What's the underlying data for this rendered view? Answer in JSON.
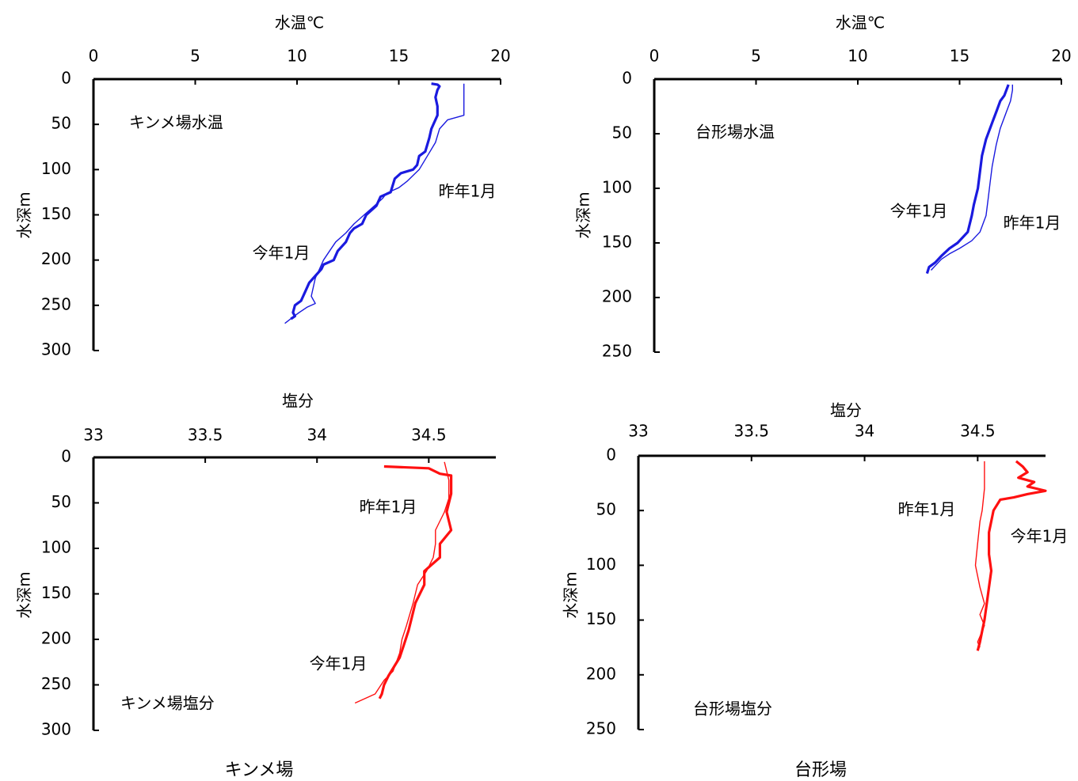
{
  "captions": [
    "キンメ場",
    "台形場"
  ],
  "chart_data": [
    {
      "type": "line",
      "panel": "top-left",
      "xlabel": "水温℃",
      "ylabel": "水深m",
      "annotation": "キンメ場水温",
      "xlim": [
        0,
        20
      ],
      "ylim": [
        0,
        300
      ],
      "xticks": [
        0,
        5,
        10,
        15,
        20
      ],
      "yticks": [
        0,
        50,
        100,
        150,
        200,
        250,
        300
      ],
      "y_inverted": true,
      "color": "#1a1adf",
      "series": [
        {
          "name": "今年1月",
          "bold": true,
          "x": [
            16.6,
            16.9,
            17.0,
            16.9,
            16.8,
            16.9,
            16.9,
            16.6,
            16.5,
            16.3,
            16.0,
            15.9,
            15.7,
            15.1,
            14.8,
            14.6,
            14.1,
            13.9,
            13.4,
            13.2,
            12.8,
            12.6,
            12.4,
            12.0,
            11.8,
            11.3,
            11.2,
            10.8,
            10.6,
            10.4,
            10.2,
            9.9,
            9.8,
            9.9,
            9.7
          ],
          "y": [
            5,
            6,
            8,
            12,
            20,
            30,
            40,
            55,
            65,
            80,
            85,
            95,
            100,
            104,
            110,
            125,
            130,
            140,
            150,
            160,
            165,
            170,
            180,
            190,
            200,
            205,
            210,
            220,
            225,
            235,
            245,
            250,
            258,
            262,
            265
          ]
        },
        {
          "name": "昨年1月",
          "bold": false,
          "x": [
            18.2,
            18.2,
            18.2,
            18.2,
            17.4,
            17.0,
            16.8,
            16.4,
            16.0,
            15.4,
            15.0,
            14.4,
            14.2,
            13.8,
            13.3,
            12.8,
            12.4,
            11.9,
            11.6,
            11.3,
            11.1,
            10.9,
            10.7,
            10.9,
            10.5,
            10.1,
            9.8,
            9.4
          ],
          "y": [
            5,
            10,
            30,
            40,
            45,
            55,
            70,
            85,
            100,
            113,
            120,
            126,
            132,
            140,
            150,
            160,
            170,
            180,
            190,
            200,
            210,
            220,
            240,
            248,
            252,
            258,
            263,
            270
          ]
        }
      ]
    },
    {
      "type": "line",
      "panel": "top-right",
      "xlabel": "水温℃",
      "ylabel": "水深m",
      "annotation": "台形場水温",
      "xlim": [
        0,
        20
      ],
      "ylim": [
        0,
        250
      ],
      "xticks": [
        0,
        5,
        10,
        15,
        20
      ],
      "yticks": [
        0,
        50,
        100,
        150,
        200,
        250
      ],
      "y_inverted": true,
      "color": "#1a1adf",
      "series": [
        {
          "name": "今年1月",
          "bold": true,
          "x": [
            17.4,
            17.2,
            17.0,
            16.8,
            16.6,
            16.3,
            16.1,
            16.0,
            15.9,
            15.7,
            15.6,
            15.4,
            14.9,
            14.5,
            14.1,
            13.8,
            13.5,
            13.4
          ],
          "y": [
            5,
            15,
            20,
            30,
            40,
            55,
            70,
            85,
            100,
            115,
            125,
            140,
            150,
            155,
            162,
            168,
            172,
            178
          ]
        },
        {
          "name": "昨年1月",
          "bold": false,
          "x": [
            17.6,
            17.6,
            17.5,
            17.3,
            17.0,
            16.8,
            16.6,
            16.5,
            16.4,
            16.3,
            16.0,
            15.6,
            15.0,
            14.5,
            14.1,
            13.6
          ],
          "y": [
            5,
            10,
            20,
            30,
            45,
            60,
            80,
            95,
            110,
            125,
            140,
            148,
            155,
            160,
            165,
            175
          ]
        }
      ]
    },
    {
      "type": "line",
      "panel": "bottom-left",
      "xlabel": "塩分",
      "ylabel": "水深m",
      "annotation": "キンメ場塩分",
      "xlim": [
        33,
        34.8
      ],
      "ylim": [
        0,
        300
      ],
      "xticks": [
        33,
        33.5,
        34,
        34.5
      ],
      "yticks": [
        0,
        50,
        100,
        150,
        200,
        250,
        300
      ],
      "y_inverted": true,
      "color": "#ff1010",
      "series": [
        {
          "name": "今年1月",
          "bold": true,
          "x": [
            34.3,
            34.5,
            34.55,
            34.6,
            34.6,
            34.58,
            34.6,
            34.55,
            34.55,
            34.48,
            34.48,
            34.44,
            34.43,
            34.41,
            34.39,
            34.37,
            34.32,
            34.3,
            34.29,
            34.28
          ],
          "y": [
            10,
            12,
            18,
            20,
            40,
            60,
            80,
            95,
            110,
            125,
            140,
            160,
            170,
            190,
            205,
            220,
            240,
            250,
            260,
            265
          ]
        },
        {
          "name": "昨年1月",
          "bold": false,
          "x": [
            34.57,
            34.59,
            34.59,
            34.57,
            34.53,
            34.53,
            34.52,
            34.49,
            34.45,
            34.43,
            34.4,
            34.38,
            34.37,
            34.34,
            34.3,
            34.26,
            34.17
          ],
          "y": [
            5,
            25,
            45,
            60,
            80,
            95,
            110,
            125,
            140,
            160,
            185,
            200,
            215,
            235,
            245,
            260,
            270
          ]
        }
      ]
    },
    {
      "type": "line",
      "panel": "bottom-right",
      "xlabel": "塩分",
      "ylabel": "水深m",
      "annotation": "台形場塩分",
      "xlim": [
        33,
        34.8
      ],
      "ylim": [
        0,
        250
      ],
      "xticks": [
        33,
        33.5,
        34,
        34.5
      ],
      "yticks": [
        0,
        50,
        100,
        150,
        200,
        250
      ],
      "y_inverted": true,
      "color": "#ff1010",
      "series": [
        {
          "name": "今年1月",
          "bold": true,
          "x": [
            34.67,
            34.7,
            34.72,
            34.68,
            34.75,
            34.72,
            34.76,
            34.8,
            34.72,
            34.66,
            34.6,
            34.57,
            34.55,
            34.55,
            34.56,
            34.55,
            34.54,
            34.53,
            34.52,
            34.51,
            34.5
          ],
          "y": [
            5,
            10,
            15,
            20,
            24,
            28,
            30,
            32,
            35,
            38,
            40,
            50,
            70,
            90,
            105,
            120,
            135,
            150,
            160,
            170,
            178
          ]
        },
        {
          "name": "昨年1月",
          "bold": false,
          "x": [
            34.53,
            34.53,
            34.52,
            34.51,
            34.5,
            34.49,
            34.51,
            34.53,
            34.51,
            34.53,
            34.52,
            34.51,
            34.5,
            34.51
          ],
          "y": [
            5,
            30,
            50,
            60,
            80,
            100,
            120,
            135,
            145,
            155,
            160,
            165,
            170,
            175
          ]
        }
      ]
    }
  ]
}
